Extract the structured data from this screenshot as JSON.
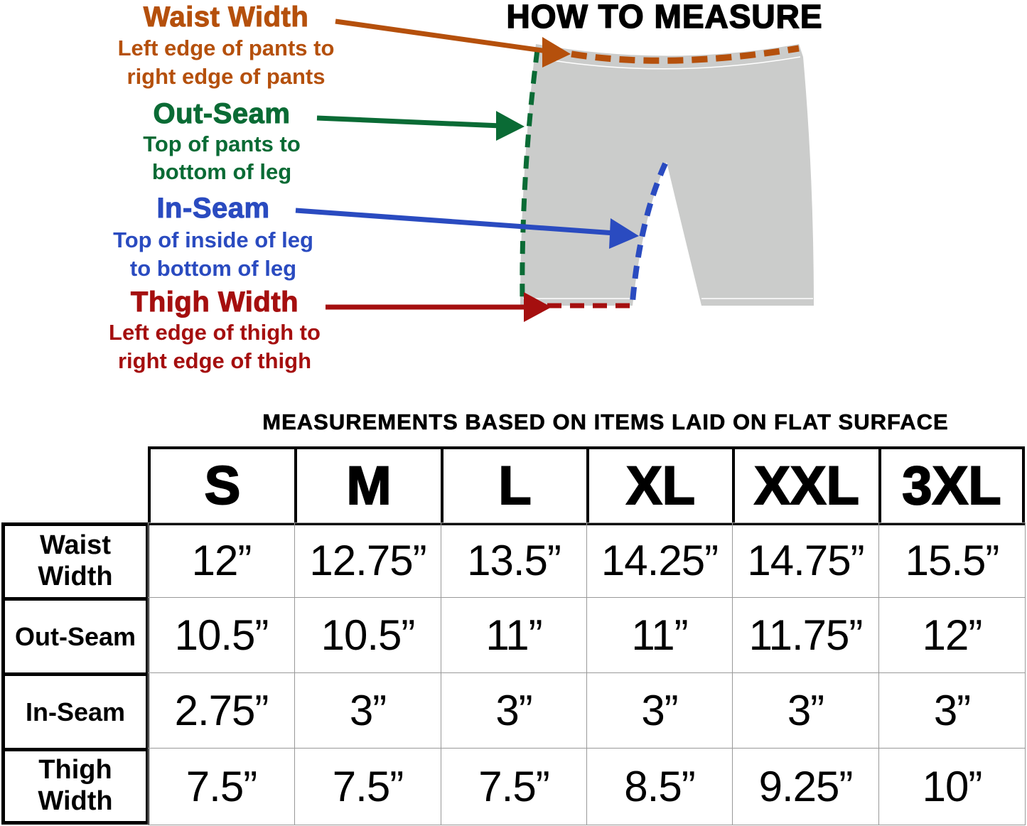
{
  "title": "HOW TO MEASURE",
  "colors": {
    "waist": "#b5500c",
    "outseam": "#0a6b35",
    "inseam": "#2a4bc0",
    "thigh": "#a50f0f",
    "pants": "#cbcccb"
  },
  "legend": [
    {
      "key": "waist",
      "title": "Waist Width",
      "lines": [
        "Left edge of pants to",
        "right edge of pants"
      ]
    },
    {
      "key": "outseam",
      "title": "Out-Seam",
      "lines": [
        "Top of pants to",
        "bottom of leg"
      ]
    },
    {
      "key": "inseam",
      "title": "In-Seam",
      "lines": [
        "Top of inside of leg",
        "to bottom of leg"
      ]
    },
    {
      "key": "thigh",
      "title": "Thigh Width",
      "lines": [
        "Left edge of thigh to",
        "right edge of thigh"
      ]
    }
  ],
  "note": "MEASUREMENTS BASED ON ITEMS LAID ON FLAT SURFACE",
  "table": {
    "sizes": [
      "S",
      "M",
      "L",
      "XL",
      "XXL",
      "3XL"
    ],
    "rows": [
      {
        "label": "Waist Width",
        "values": [
          "12”",
          "12.75”",
          "13.5”",
          "14.25”",
          "14.75”",
          "15.5”"
        ]
      },
      {
        "label": "Out-Seam",
        "values": [
          "10.5”",
          "10.5”",
          "11”",
          "11”",
          "11.75”",
          "12”"
        ]
      },
      {
        "label": "In-Seam",
        "values": [
          "2.75”",
          "3”",
          "3”",
          "3”",
          "3”",
          "3”"
        ]
      },
      {
        "label": "Thigh Width",
        "values": [
          "7.5”",
          "7.5”",
          "7.5”",
          "8.5”",
          "9.25”",
          "10”"
        ]
      }
    ]
  }
}
